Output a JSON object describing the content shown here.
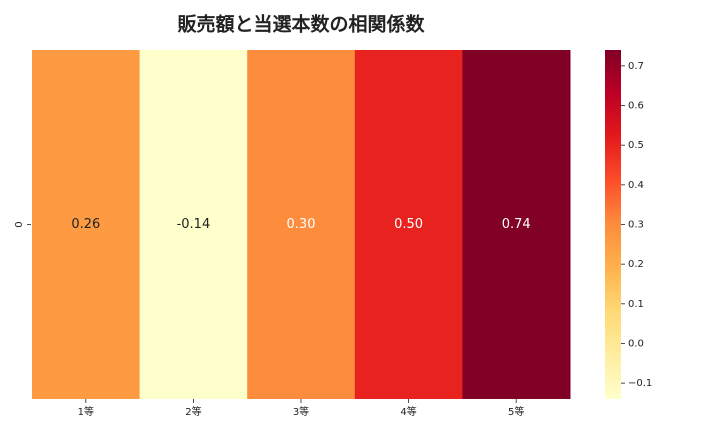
{
  "chart_data": {
    "type": "heatmap",
    "title": "販売額と当選本数の相関係数",
    "rows": [
      "0"
    ],
    "categories": [
      "1等",
      "2等",
      "3等",
      "4等",
      "5等"
    ],
    "values": [
      [
        0.26,
        -0.14,
        0.3,
        0.5,
        0.74
      ]
    ],
    "value_labels": [
      [
        "0.26",
        "-0.14",
        "0.30",
        "0.50",
        "0.74"
      ]
    ],
    "colormap": [
      "#ffffcc",
      "#ffeda0",
      "#fed976",
      "#feb24c",
      "#fd8d3c",
      "#fc4e2a",
      "#e31a1c",
      "#bd0026",
      "#800026"
    ],
    "clim": [
      -0.14,
      0.74
    ],
    "cticks": [
      {
        "value": -0.1,
        "label": "−0.1"
      },
      {
        "value": 0,
        "label": "0.0"
      },
      0.1,
      0.2,
      0.3,
      0.4,
      0.5,
      0.6,
      0.7
    ]
  }
}
